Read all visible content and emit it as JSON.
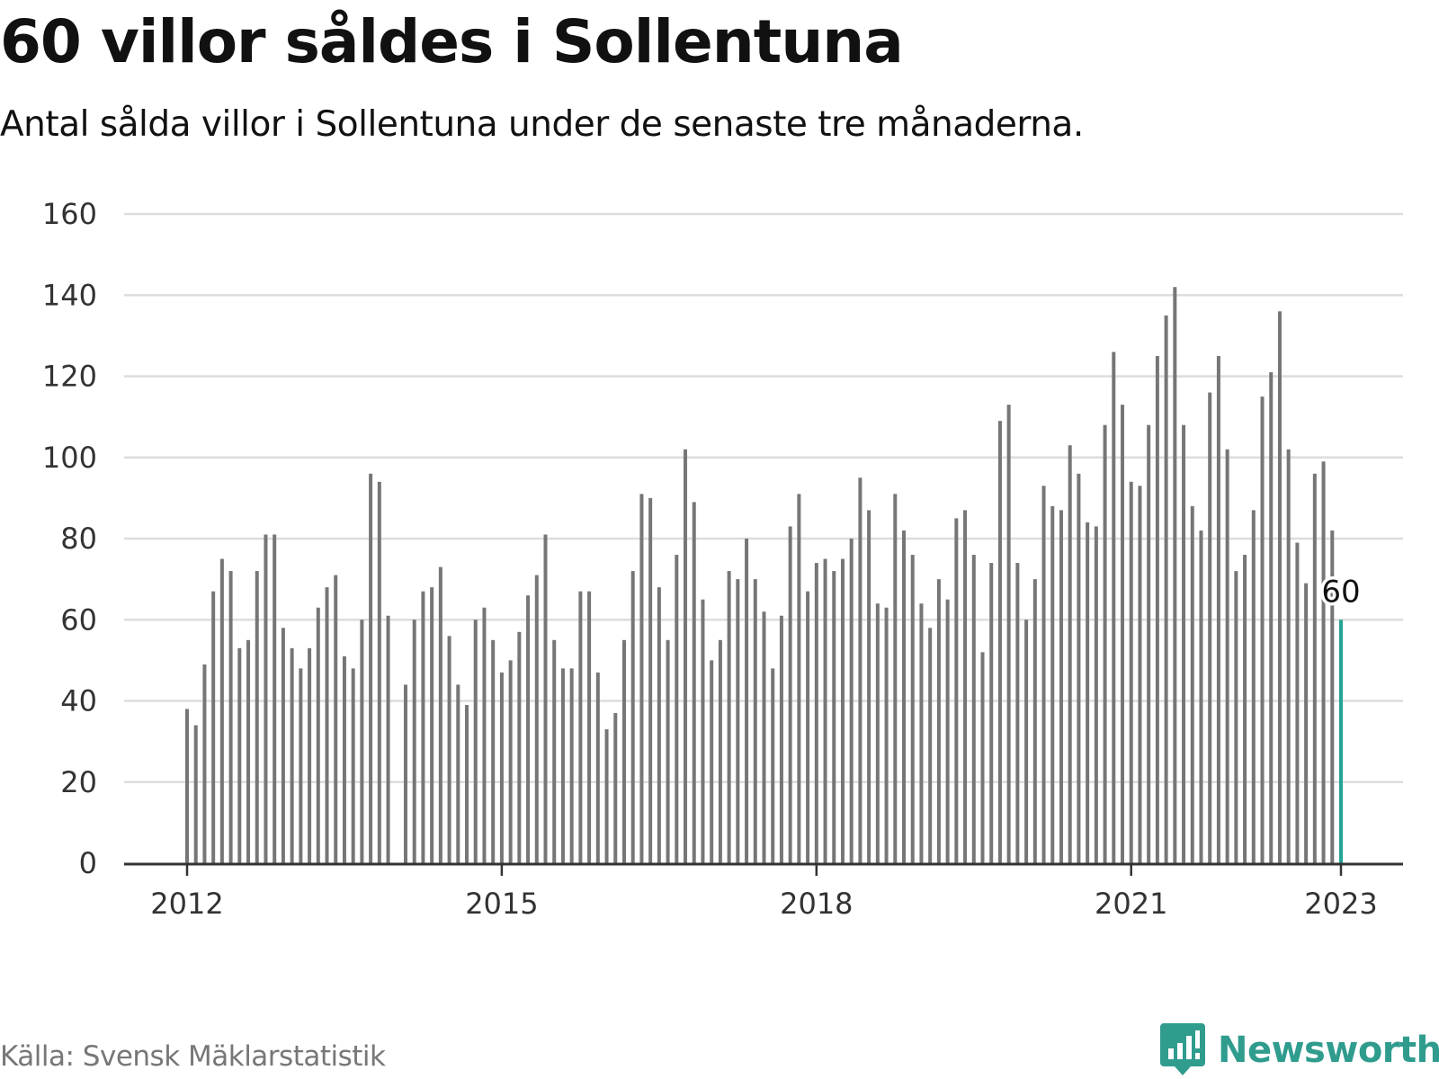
{
  "title": "60 villor såldes i Sollentuna",
  "subtitle": "Antal sålda villor i Sollentuna under de senaste tre månaderna.",
  "source": "Källa: Svensk Mäklarstatistik",
  "brand": "Newsworthy",
  "colors": {
    "bar": "#767676",
    "highlight": "#26a394",
    "grid": "#dddddd",
    "axis": "#333333",
    "brand": "#2f9c8e"
  },
  "chart_data": {
    "type": "bar",
    "ylim": [
      0,
      160
    ],
    "yticks": [
      "0",
      "20",
      "40",
      "60",
      "80",
      "100",
      "120",
      "140",
      "160"
    ],
    "xtick_labels": [
      "2012",
      "2015",
      "2018",
      "2021",
      "2023"
    ],
    "highlight_label": "60",
    "grid": true,
    "categories": [
      "2012-01",
      "2012-02",
      "2012-03",
      "2012-04",
      "2012-05",
      "2012-06",
      "2012-07",
      "2012-08",
      "2012-09",
      "2012-10",
      "2012-11",
      "2012-12",
      "2013-01",
      "2013-02",
      "2013-03",
      "2013-04",
      "2013-05",
      "2013-06",
      "2013-07",
      "2013-08",
      "2013-09",
      "2013-10",
      "2013-11",
      "2013-12",
      "2014-01",
      "2014-02",
      "2014-03",
      "2014-04",
      "2014-05",
      "2014-06",
      "2014-07",
      "2014-08",
      "2014-09",
      "2014-10",
      "2014-11",
      "2014-12",
      "2015-01",
      "2015-02",
      "2015-03",
      "2015-04",
      "2015-05",
      "2015-06",
      "2015-07",
      "2015-08",
      "2015-09",
      "2015-10",
      "2015-11",
      "2015-12",
      "2016-01",
      "2016-02",
      "2016-03",
      "2016-04",
      "2016-05",
      "2016-06",
      "2016-07",
      "2016-08",
      "2016-09",
      "2016-10",
      "2016-11",
      "2016-12",
      "2017-01",
      "2017-02",
      "2017-03",
      "2017-04",
      "2017-05",
      "2017-06",
      "2017-07",
      "2017-08",
      "2017-09",
      "2017-10",
      "2017-11",
      "2017-12",
      "2018-01",
      "2018-02",
      "2018-03",
      "2018-04",
      "2018-05",
      "2018-06",
      "2018-07",
      "2018-08",
      "2018-09",
      "2018-10",
      "2018-11",
      "2018-12",
      "2019-01",
      "2019-02",
      "2019-03",
      "2019-04",
      "2019-05",
      "2019-06",
      "2019-07",
      "2019-08",
      "2019-09",
      "2019-10",
      "2019-11",
      "2019-12",
      "2020-01",
      "2020-02",
      "2020-03",
      "2020-04",
      "2020-05",
      "2020-06",
      "2020-07",
      "2020-08",
      "2020-09",
      "2020-10",
      "2020-11",
      "2020-12",
      "2021-01",
      "2021-02",
      "2021-03",
      "2021-04",
      "2021-05",
      "2021-06",
      "2021-07",
      "2021-08",
      "2021-09",
      "2021-10",
      "2021-11",
      "2021-12",
      "2022-01",
      "2022-02",
      "2022-03",
      "2022-04",
      "2022-05",
      "2022-06",
      "2022-07",
      "2022-08",
      "2022-09",
      "2022-10",
      "2022-11",
      "2022-12",
      "2023-01"
    ],
    "series": [
      {
        "values": [
          38,
          34,
          49,
          67,
          75,
          72,
          53,
          55,
          72,
          81,
          81,
          58,
          53,
          48,
          53,
          63,
          68,
          71,
          51,
          48,
          60,
          96,
          94,
          61,
          0,
          44,
          60,
          67,
          68,
          73,
          56,
          44,
          39,
          60,
          63,
          55,
          47,
          50,
          57,
          66,
          71,
          81,
          55,
          48,
          48,
          67,
          67,
          47,
          33,
          37,
          55,
          72,
          91,
          90,
          68,
          55,
          76,
          102,
          89,
          65,
          50,
          55,
          72,
          70,
          80,
          70,
          62,
          48,
          61,
          83,
          91,
          67,
          74,
          75,
          72,
          75,
          80,
          95,
          87,
          64,
          63,
          91,
          82,
          76,
          64,
          58,
          70,
          65,
          85,
          87,
          76,
          52,
          74,
          109,
          113,
          74,
          60,
          70,
          93,
          88,
          87,
          103,
          96,
          84,
          83,
          108,
          126,
          113,
          94,
          93,
          108,
          125,
          135,
          142,
          108,
          88,
          82,
          116,
          125,
          102,
          72,
          76,
          87,
          115,
          121,
          136,
          102,
          79,
          69,
          96,
          99,
          82,
          60
        ]
      }
    ]
  }
}
